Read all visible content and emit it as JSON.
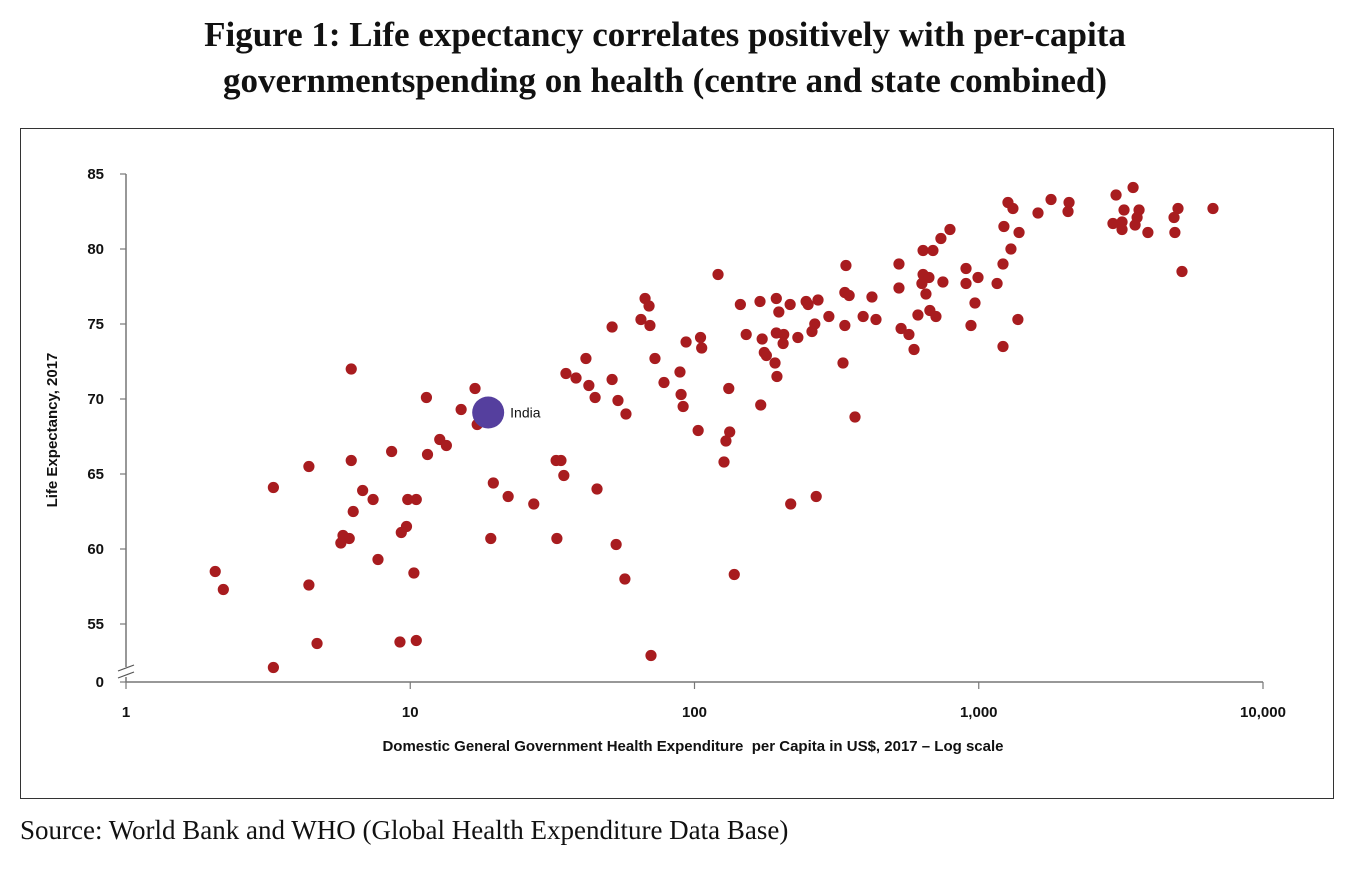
{
  "title": {
    "line1": "Figure 1: Life expectancy correlates positively with per-capita",
    "line2": "governmentspending on health (centre and state combined)"
  },
  "source": "Source: World Bank and WHO (Global Health Expenditure Data Base)",
  "chart_data": {
    "type": "scatter",
    "title": "Figure 1: Life expectancy correlates positively with per-capita governmentspending on health (centre and state combined)",
    "xlabel": "Domestic General Government Health Expenditure  per Capita in US$, 2017 – Log scale",
    "ylabel": "Life Expectancy, 2017",
    "xscale": "log",
    "xlim": [
      1,
      10000
    ],
    "ylim": [
      0,
      85
    ],
    "y_axis_break": [
      0,
      55
    ],
    "xticks": [
      1,
      10,
      100,
      1000,
      10000
    ],
    "xtick_labels": [
      "1",
      "10",
      "100",
      "1,000",
      "10,000"
    ],
    "yticks": [
      0,
      55,
      60,
      65,
      70,
      75,
      80,
      85
    ],
    "ytick_labels": [
      "0",
      "55",
      "60",
      "65",
      "70",
      "75",
      "80",
      "85"
    ],
    "grid": false,
    "colors": {
      "countries": "#a81c1f",
      "india": "#553f9e"
    },
    "highlight": {
      "label": "India",
      "x": 18.8,
      "y": 69.1
    },
    "points": [
      [
        6.2,
        72.0
      ],
      [
        11.4,
        70.1
      ],
      [
        16.9,
        70.7
      ],
      [
        15.1,
        69.3
      ],
      [
        17.2,
        68.3
      ],
      [
        12.7,
        67.3
      ],
      [
        13.4,
        66.9
      ],
      [
        8.6,
        66.5
      ],
      [
        11.5,
        66.3
      ],
      [
        4.4,
        65.5
      ],
      [
        6.2,
        65.9
      ],
      [
        3.3,
        64.1
      ],
      [
        6.8,
        63.9
      ],
      [
        7.4,
        63.3
      ],
      [
        9.8,
        63.3
      ],
      [
        10.5,
        63.3
      ],
      [
        6.3,
        62.5
      ],
      [
        19.6,
        64.4
      ],
      [
        22.1,
        63.5
      ],
      [
        9.7,
        61.5
      ],
      [
        9.3,
        61.1
      ],
      [
        5.8,
        60.9
      ],
      [
        6.1,
        60.7
      ],
      [
        5.7,
        60.4
      ],
      [
        19.2,
        60.7
      ],
      [
        32.8,
        60.7
      ],
      [
        53.0,
        60.3
      ],
      [
        7.7,
        59.3
      ],
      [
        10.3,
        58.4
      ],
      [
        56.9,
        58.0
      ],
      [
        2.06,
        58.5
      ],
      [
        2.2,
        57.3
      ],
      [
        4.4,
        57.6
      ],
      [
        4.7,
        53.7
      ],
      [
        9.2,
        53.8
      ],
      [
        10.5,
        53.9
      ],
      [
        70.3,
        52.9
      ],
      [
        3.3,
        52.1
      ],
      [
        27.2,
        63.0
      ],
      [
        792,
        81.3
      ],
      [
        736,
        80.7
      ],
      [
        637,
        79.9
      ],
      [
        690,
        79.9
      ],
      [
        524,
        79.0
      ],
      [
        341,
        78.9
      ],
      [
        902,
        78.7
      ],
      [
        994,
        78.1
      ],
      [
        637,
        78.3
      ],
      [
        668,
        78.1
      ],
      [
        631,
        77.7
      ],
      [
        748,
        77.8
      ],
      [
        524,
        77.4
      ],
      [
        902,
        77.7
      ],
      [
        652,
        77.0
      ],
      [
        970,
        76.4
      ],
      [
        338,
        77.1
      ],
      [
        350,
        76.9
      ],
      [
        421,
        76.8
      ],
      [
        121,
        78.3
      ],
      [
        194,
        76.7
      ],
      [
        170,
        76.5
      ],
      [
        145,
        76.3
      ],
      [
        217,
        76.3
      ],
      [
        247,
        76.5
      ],
      [
        251,
        76.3
      ],
      [
        272,
        76.6
      ],
      [
        198,
        75.8
      ],
      [
        297,
        75.5
      ],
      [
        392,
        75.5
      ],
      [
        435,
        75.3
      ],
      [
        611,
        75.6
      ],
      [
        673,
        75.9
      ],
      [
        707,
        75.5
      ],
      [
        939,
        74.9
      ],
      [
        338,
        74.9
      ],
      [
        265,
        75.0
      ],
      [
        259,
        74.5
      ],
      [
        533,
        74.7
      ],
      [
        568,
        74.3
      ],
      [
        592,
        73.3
      ],
      [
        333,
        72.4
      ],
      [
        152,
        74.3
      ],
      [
        173,
        74.0
      ],
      [
        194,
        74.4
      ],
      [
        206,
        74.3
      ],
      [
        231,
        74.1
      ],
      [
        205,
        73.7
      ],
      [
        176,
        73.1
      ],
      [
        179,
        72.9
      ],
      [
        192,
        72.4
      ],
      [
        195,
        71.5
      ],
      [
        132,
        70.7
      ],
      [
        171,
        69.6
      ],
      [
        367,
        68.8
      ],
      [
        67.0,
        76.7
      ],
      [
        69.2,
        76.2
      ],
      [
        64.8,
        75.3
      ],
      [
        69.7,
        74.9
      ],
      [
        51.3,
        74.8
      ],
      [
        93.4,
        73.8
      ],
      [
        105,
        74.1
      ],
      [
        106,
        73.4
      ],
      [
        41.5,
        72.7
      ],
      [
        35.3,
        71.7
      ],
      [
        38.3,
        71.4
      ],
      [
        42.5,
        70.9
      ],
      [
        44.7,
        70.1
      ],
      [
        51.3,
        71.3
      ],
      [
        53.8,
        69.9
      ],
      [
        57.4,
        69.0
      ],
      [
        72.6,
        72.7
      ],
      [
        78.1,
        71.1
      ],
      [
        88.9,
        71.8
      ],
      [
        89.7,
        70.3
      ],
      [
        91.2,
        69.5
      ],
      [
        103,
        67.9
      ],
      [
        133,
        67.8
      ],
      [
        129,
        67.2
      ],
      [
        127,
        65.8
      ],
      [
        32.6,
        65.9
      ],
      [
        33.9,
        65.9
      ],
      [
        34.7,
        64.9
      ],
      [
        45.4,
        64.0
      ],
      [
        218,
        63.0
      ],
      [
        268,
        63.5
      ],
      [
        138,
        58.3
      ],
      [
        1267,
        83.1
      ],
      [
        1319,
        82.7
      ],
      [
        1616,
        82.4
      ],
      [
        1796,
        83.3
      ],
      [
        2078,
        83.1
      ],
      [
        2061,
        82.5
      ],
      [
        1226,
        81.5
      ],
      [
        1386,
        81.1
      ],
      [
        1298,
        80.0
      ],
      [
        1217,
        79.0
      ],
      [
        1160,
        77.7
      ],
      [
        1373,
        75.3
      ],
      [
        1217,
        73.5
      ],
      [
        3041,
        83.6
      ],
      [
        3491,
        84.1
      ],
      [
        3244,
        82.6
      ],
      [
        3664,
        82.6
      ],
      [
        3606,
        82.1
      ],
      [
        2966,
        81.7
      ],
      [
        3192,
        81.8
      ],
      [
        3192,
        81.3
      ],
      [
        3548,
        81.6
      ],
      [
        3936,
        81.1
      ],
      [
        5023,
        82.7
      ],
      [
        4864,
        82.1
      ],
      [
        4898,
        81.1
      ],
      [
        6668,
        82.7
      ],
      [
        5188,
        78.5
      ]
    ]
  }
}
